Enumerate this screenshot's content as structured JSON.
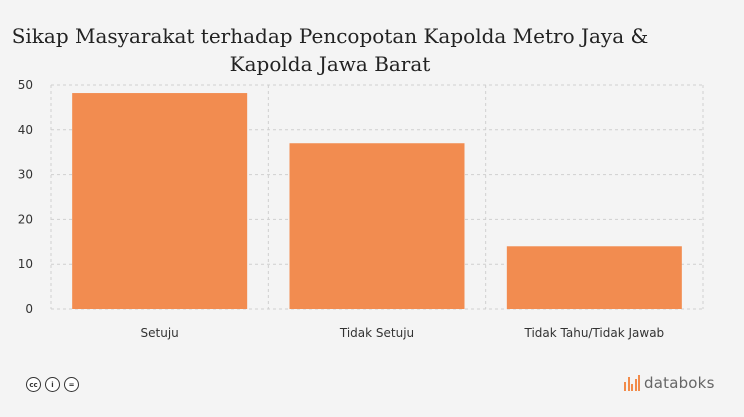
{
  "chart_data": {
    "type": "bar",
    "title": "Sikap Masyarakat terhadap Pencopotan Kapolda Metro Jaya & Kapolda Jawa Barat",
    "title_lines": [
      "Sikap Masyarakat terhadap Pencopotan Kapolda Metro Jaya &",
      "Kapolda Jawa Barat"
    ],
    "categories": [
      "Setuju",
      "Tidak Setuju",
      "Tidak Tahu/Tidak Jawab"
    ],
    "values": [
      48.2,
      37.0,
      14.0
    ],
    "ylim": [
      0,
      50
    ],
    "yticks": [
      0,
      10,
      20,
      30,
      40,
      50
    ],
    "xlabel": "",
    "ylabel": "",
    "grid": true,
    "bar_color": "#f28c50"
  },
  "footer": {
    "license_icons": [
      "cc-icon",
      "by-icon",
      "nd-icon"
    ],
    "license_glyphs": [
      "cc",
      "i",
      "="
    ],
    "brand": "databoks"
  }
}
